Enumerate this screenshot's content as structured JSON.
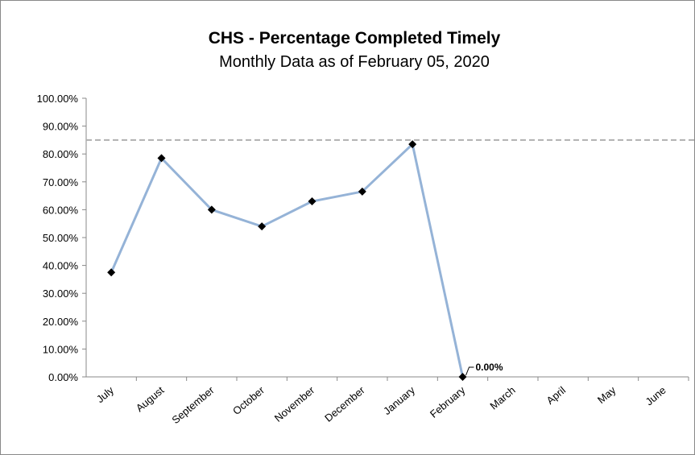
{
  "chart_data": {
    "type": "line",
    "title": "CHS - Percentage Completed Timely",
    "subtitle": "Monthly  Data as of February 05, 2020",
    "categories": [
      "July",
      "August",
      "September",
      "October",
      "November",
      "December",
      "January",
      "February",
      "March",
      "April",
      "May",
      "June"
    ],
    "series": [
      {
        "name": "Percentage Completed Timely",
        "color": "#95b3d7",
        "values": [
          37.5,
          78.5,
          60,
          54,
          63,
          66.5,
          83.5,
          0,
          null,
          null,
          null,
          null
        ],
        "value_labels": [
          null,
          null,
          null,
          null,
          null,
          null,
          null,
          "0.00%",
          null,
          null,
          null,
          null
        ]
      }
    ],
    "target": 85,
    "target_color": "#b0b0b0",
    "ylim": [
      0,
      100
    ],
    "yticks": [
      {
        "value": 0,
        "label": "0.00%"
      },
      {
        "value": 10,
        "label": "10.00%"
      },
      {
        "value": 20,
        "label": "20.00%"
      },
      {
        "value": 30,
        "label": "30.00%"
      },
      {
        "value": 40,
        "label": "40.00%"
      },
      {
        "value": 50,
        "label": "50.00%"
      },
      {
        "value": 60,
        "label": "60.00%"
      },
      {
        "value": 70,
        "label": "70.00%"
      },
      {
        "value": 80,
        "label": "80.00%"
      },
      {
        "value": 90,
        "label": "90.00%"
      },
      {
        "value": 100,
        "label": "100.00%"
      }
    ]
  }
}
